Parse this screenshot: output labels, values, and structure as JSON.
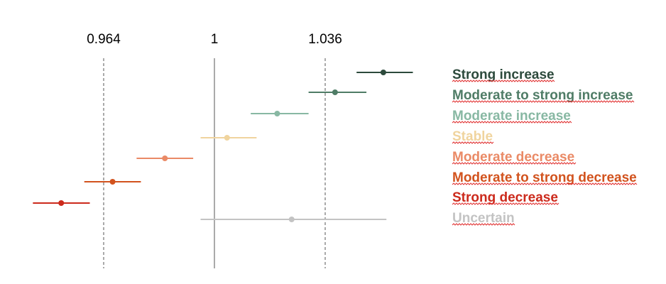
{
  "chart_data": {
    "type": "scatter",
    "title": "",
    "xlabel": "",
    "ylabel": "",
    "xlim": [
      0.93,
      1.1
    ],
    "x_ticks": [
      {
        "value": 0.964,
        "label": "0.964",
        "line": "dashed"
      },
      {
        "value": 1,
        "label": "1",
        "line": "solid"
      },
      {
        "value": 1.036,
        "label": "1.036",
        "line": "dashed"
      }
    ],
    "series": [
      {
        "name": "Strong increase",
        "color": "#2d4a3c",
        "x": 1.0549,
        "low": 1.0462,
        "high": 1.0645
      },
      {
        "name": "Moderate to strong increase",
        "color": "#4f7c66",
        "x": 1.0392,
        "low": 1.0306,
        "high": 1.0494
      },
      {
        "name": "Moderate increase",
        "color": "#88b8a3",
        "x": 1.0204,
        "low": 1.0118,
        "high": 1.0306
      },
      {
        "name": "Stable",
        "color": "#f0d49e",
        "x": 1.0041,
        "low": 0.9955,
        "high": 1.0137
      },
      {
        "name": "Moderate decrease",
        "color": "#ea8a66",
        "x": 0.9839,
        "low": 0.9747,
        "high": 0.9931
      },
      {
        "name": "Moderate to strong decrease",
        "color": "#d2531e",
        "x": 0.9669,
        "low": 0.9577,
        "high": 0.9761
      },
      {
        "name": "Strong decrease",
        "color": "#cc2a1c",
        "x": 0.9502,
        "low": 0.941,
        "high": 0.9595
      },
      {
        "name": "Uncertain",
        "color": "#c3c3c3",
        "x": 1.0251,
        "low": 0.9955,
        "high": 1.0559
      }
    ],
    "grid": false,
    "legend_position": "right"
  }
}
